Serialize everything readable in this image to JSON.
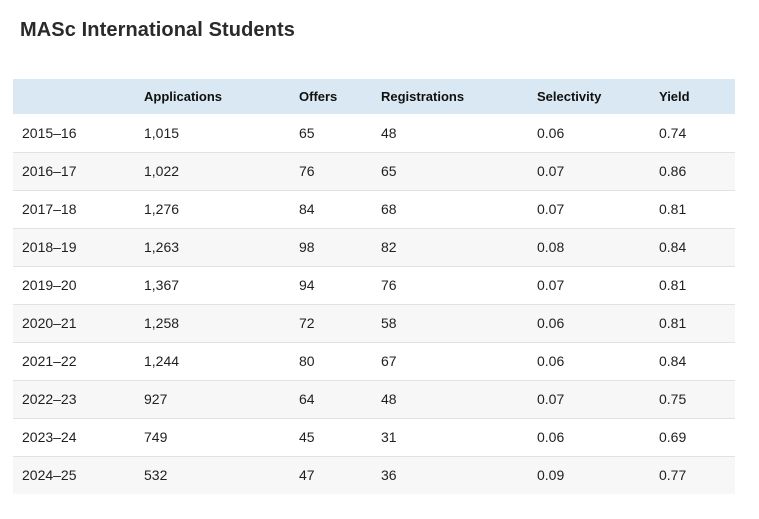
{
  "page": {
    "title": "MASc International Students"
  },
  "table": {
    "columns": [
      "",
      "Applications",
      "Offers",
      "Registrations",
      "Selectivity",
      "Yield"
    ],
    "rows": [
      {
        "year": "2015–16",
        "applications": "1,015",
        "offers": "65",
        "registrations": "48",
        "selectivity": "0.06",
        "yield": "0.74"
      },
      {
        "year": "2016–17",
        "applications": "1,022",
        "offers": "76",
        "registrations": "65",
        "selectivity": "0.07",
        "yield": "0.86"
      },
      {
        "year": "2017–18",
        "applications": "1,276",
        "offers": "84",
        "registrations": "68",
        "selectivity": "0.07",
        "yield": "0.81"
      },
      {
        "year": "2018–19",
        "applications": "1,263",
        "offers": "98",
        "registrations": "82",
        "selectivity": "0.08",
        "yield": "0.84"
      },
      {
        "year": "2019–20",
        "applications": "1,367",
        "offers": "94",
        "registrations": "76",
        "selectivity": "0.07",
        "yield": "0.81"
      },
      {
        "year": "2020–21",
        "applications": "1,258",
        "offers": "72",
        "registrations": "58",
        "selectivity": "0.06",
        "yield": "0.81"
      },
      {
        "year": "2021–22",
        "applications": "1,244",
        "offers": "80",
        "registrations": "67",
        "selectivity": "0.06",
        "yield": "0.84"
      },
      {
        "year": "2022–23",
        "applications": "927",
        "offers": "64",
        "registrations": "48",
        "selectivity": "0.07",
        "yield": "0.75"
      },
      {
        "year": "2023–24",
        "applications": "749",
        "offers": "45",
        "registrations": "31",
        "selectivity": "0.06",
        "yield": "0.69"
      },
      {
        "year": "2024–25",
        "applications": "532",
        "offers": "47",
        "registrations": "36",
        "selectivity": "0.09",
        "yield": "0.77"
      }
    ]
  },
  "chart_data": {
    "type": "table",
    "title": "MASc International Students",
    "columns": [
      "",
      "Applications",
      "Offers",
      "Registrations",
      "Selectivity",
      "Yield"
    ],
    "rows": [
      [
        "2015–16",
        1015,
        65,
        48,
        0.06,
        0.74
      ],
      [
        "2016–17",
        1022,
        76,
        65,
        0.07,
        0.86
      ],
      [
        "2017–18",
        1276,
        84,
        68,
        0.07,
        0.81
      ],
      [
        "2018–19",
        1263,
        98,
        82,
        0.08,
        0.84
      ],
      [
        "2019–20",
        1367,
        94,
        76,
        0.07,
        0.81
      ],
      [
        "2020–21",
        1258,
        72,
        58,
        0.06,
        0.81
      ],
      [
        "2021–22",
        1244,
        80,
        67,
        0.06,
        0.84
      ],
      [
        "2022–23",
        927,
        64,
        48,
        0.07,
        0.75
      ],
      [
        "2023–24",
        749,
        45,
        31,
        0.06,
        0.69
      ],
      [
        "2024–25",
        532,
        47,
        36,
        0.09,
        0.77
      ]
    ]
  },
  "colors": {
    "header_bg": "#d9e8f2",
    "row_alt_bg": "#f7f7f7",
    "border": "#e2e2e2",
    "text": "#1f1f1f",
    "title": "#2a2a2a"
  }
}
